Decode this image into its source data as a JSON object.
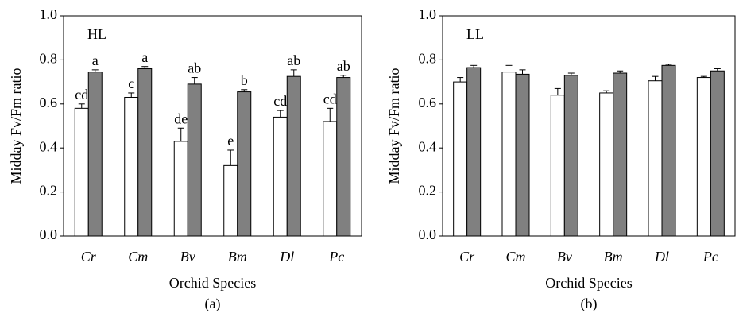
{
  "chart_data": [
    {
      "type": "bar",
      "panel_label": "HL",
      "caption": "(a)",
      "ylabel": "Midday Fv/Fm ratio",
      "xlabel": "Orchid Species",
      "categories": [
        "Cr",
        "Cm",
        "Bv",
        "Bm",
        "Dl",
        "Pc"
      ],
      "series": [
        {
          "color": "#ffffff",
          "values": [
            0.58,
            0.63,
            0.43,
            0.32,
            0.54,
            0.52
          ],
          "errors": [
            0.02,
            0.02,
            0.06,
            0.07,
            0.03,
            0.06
          ],
          "labels": [
            "cd",
            "c",
            "de",
            "e",
            "cd",
            "cd"
          ]
        },
        {
          "color": "#808080",
          "values": [
            0.745,
            0.76,
            0.69,
            0.655,
            0.725,
            0.72
          ],
          "errors": [
            0.01,
            0.01,
            0.03,
            0.01,
            0.03,
            0.01
          ],
          "labels": [
            "a",
            "a",
            "ab",
            "b",
            "ab",
            "ab"
          ]
        }
      ],
      "ylim": [
        0,
        1
      ],
      "yticks": [
        {
          "value": 0,
          "label": "0.0"
        },
        0.2,
        0.4,
        0.6,
        0.8,
        {
          "value": 1,
          "label": "1.0"
        }
      ]
    },
    {
      "type": "bar",
      "panel_label": "LL",
      "caption": "(b)",
      "ylabel": "Midday Fv/Fm ratio",
      "xlabel": "Orchid Species",
      "categories": [
        "Cr",
        "Cm",
        "Bv",
        "Bm",
        "Dl",
        "Pc"
      ],
      "series": [
        {
          "color": "#ffffff",
          "values": [
            0.7,
            0.745,
            0.64,
            0.65,
            0.705,
            0.72
          ],
          "errors": [
            0.02,
            0.03,
            0.03,
            0.01,
            0.02,
            0.005
          ]
        },
        {
          "color": "#808080",
          "values": [
            0.765,
            0.735,
            0.73,
            0.74,
            0.775,
            0.75
          ],
          "errors": [
            0.01,
            0.02,
            0.01,
            0.01,
            0.005,
            0.01
          ]
        }
      ],
      "ylim": [
        0,
        1
      ],
      "yticks": [
        {
          "value": 0,
          "label": "0.0"
        },
        0.2,
        0.4,
        0.6,
        0.8,
        {
          "value": 1,
          "label": "1.0"
        }
      ]
    }
  ]
}
